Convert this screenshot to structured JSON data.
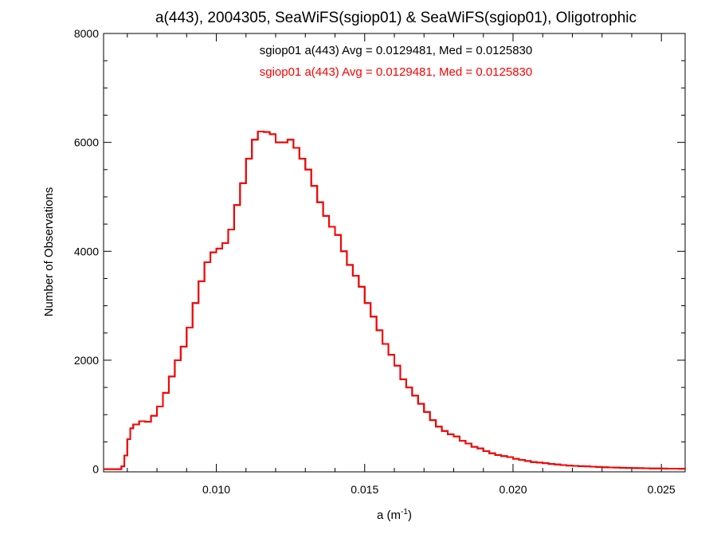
{
  "chart_data": {
    "type": "line",
    "step": true,
    "title": "a(443), 2004305, SeaWiFS(sgiop01) & SeaWiFS(sgiop01), Oligotrophic",
    "xlabel": {
      "base": "a (m",
      "sup": "-1",
      "close": ")"
    },
    "ylabel": "Number of Observations",
    "xlim": [
      0.0062,
      0.0258
    ],
    "ylim": [
      -50,
      8000
    ],
    "x_ticks": [
      {
        "value": 0.01,
        "label": "0.010"
      },
      {
        "value": 0.015,
        "label": "0.015"
      },
      {
        "value": 0.02,
        "label": "0.020"
      },
      {
        "value": 0.025,
        "label": "0.025"
      }
    ],
    "y_ticks": [
      {
        "value": 0,
        "label": "0"
      },
      {
        "value": 2000,
        "label": "2000"
      },
      {
        "value": 4000,
        "label": "4000"
      },
      {
        "value": 6000,
        "label": "6000"
      },
      {
        "value": 8000,
        "label": "8000"
      }
    ],
    "grid": false,
    "legend_placement": "top-center",
    "series": [
      {
        "legend": "sgiop01 a(443) Avg = 0.0129481, Med = 0.0125830",
        "color": "#000000",
        "x": [
          0.0062,
          0.0066,
          0.0068,
          0.0069,
          0.007,
          0.0071,
          0.0072,
          0.0074,
          0.0076,
          0.0078,
          0.008,
          0.0082,
          0.0084,
          0.0086,
          0.0088,
          0.009,
          0.0092,
          0.0094,
          0.0096,
          0.0098,
          0.01,
          0.0102,
          0.0104,
          0.0106,
          0.0108,
          0.011,
          0.0112,
          0.0114,
          0.0116,
          0.0118,
          0.012,
          0.0122,
          0.0124,
          0.0126,
          0.0128,
          0.013,
          0.0132,
          0.0134,
          0.0136,
          0.0138,
          0.014,
          0.0142,
          0.0144,
          0.0146,
          0.0148,
          0.015,
          0.0152,
          0.0154,
          0.0156,
          0.0158,
          0.016,
          0.0162,
          0.0164,
          0.0166,
          0.0168,
          0.017,
          0.0172,
          0.0174,
          0.0176,
          0.0178,
          0.018,
          0.0182,
          0.0184,
          0.0186,
          0.0188,
          0.019,
          0.0192,
          0.0194,
          0.0196,
          0.0198,
          0.02,
          0.0202,
          0.0204,
          0.0206,
          0.0208,
          0.021,
          0.0212,
          0.0214,
          0.0216,
          0.0218,
          0.022,
          0.0222,
          0.0224,
          0.0226,
          0.0228,
          0.023,
          0.0232,
          0.0234,
          0.0236,
          0.0238,
          0.024,
          0.0242,
          0.0244,
          0.0246,
          0.0248,
          0.025,
          0.0252,
          0.0254,
          0.0256,
          0.0258
        ],
        "y": [
          0,
          0,
          50,
          250,
          550,
          750,
          820,
          880,
          870,
          980,
          1150,
          1400,
          1700,
          2000,
          2250,
          2600,
          3050,
          3450,
          3800,
          3980,
          4050,
          4150,
          4400,
          4850,
          5250,
          5700,
          6050,
          6200,
          6190,
          6150,
          6000,
          6000,
          6050,
          5900,
          5700,
          5500,
          5200,
          4900,
          4650,
          4450,
          4300,
          4000,
          3750,
          3550,
          3350,
          3050,
          2800,
          2550,
          2300,
          2100,
          1900,
          1650,
          1500,
          1350,
          1200,
          1050,
          900,
          780,
          700,
          640,
          600,
          520,
          470,
          410,
          380,
          330,
          290,
          260,
          240,
          220,
          190,
          170,
          150,
          130,
          120,
          110,
          95,
          85,
          75,
          65,
          60,
          55,
          50,
          45,
          40,
          35,
          30,
          28,
          25,
          22,
          20,
          18,
          15,
          13,
          12,
          10,
          9,
          8,
          7,
          6
        ]
      },
      {
        "legend": "sgiop01 a(443) Avg = 0.0129481, Med = 0.0125830",
        "color": "#ff0000",
        "x": [
          0.0062,
          0.0066,
          0.0068,
          0.0069,
          0.007,
          0.0071,
          0.0072,
          0.0074,
          0.0076,
          0.0078,
          0.008,
          0.0082,
          0.0084,
          0.0086,
          0.0088,
          0.009,
          0.0092,
          0.0094,
          0.0096,
          0.0098,
          0.01,
          0.0102,
          0.0104,
          0.0106,
          0.0108,
          0.011,
          0.0112,
          0.0114,
          0.0116,
          0.0118,
          0.012,
          0.0122,
          0.0124,
          0.0126,
          0.0128,
          0.013,
          0.0132,
          0.0134,
          0.0136,
          0.0138,
          0.014,
          0.0142,
          0.0144,
          0.0146,
          0.0148,
          0.015,
          0.0152,
          0.0154,
          0.0156,
          0.0158,
          0.016,
          0.0162,
          0.0164,
          0.0166,
          0.0168,
          0.017,
          0.0172,
          0.0174,
          0.0176,
          0.0178,
          0.018,
          0.0182,
          0.0184,
          0.0186,
          0.0188,
          0.019,
          0.0192,
          0.0194,
          0.0196,
          0.0198,
          0.02,
          0.0202,
          0.0204,
          0.0206,
          0.0208,
          0.021,
          0.0212,
          0.0214,
          0.0216,
          0.0218,
          0.022,
          0.0222,
          0.0224,
          0.0226,
          0.0228,
          0.023,
          0.0232,
          0.0234,
          0.0236,
          0.0238,
          0.024,
          0.0242,
          0.0244,
          0.0246,
          0.0248,
          0.025,
          0.0252,
          0.0254,
          0.0256,
          0.0258
        ],
        "y": [
          0,
          0,
          50,
          250,
          550,
          750,
          820,
          880,
          870,
          980,
          1150,
          1400,
          1700,
          2000,
          2250,
          2600,
          3050,
          3450,
          3800,
          3980,
          4050,
          4150,
          4400,
          4850,
          5250,
          5700,
          6050,
          6200,
          6190,
          6150,
          6000,
          6000,
          6050,
          5900,
          5700,
          5500,
          5200,
          4900,
          4650,
          4450,
          4300,
          4000,
          3750,
          3550,
          3350,
          3050,
          2800,
          2550,
          2300,
          2100,
          1900,
          1650,
          1500,
          1350,
          1200,
          1050,
          900,
          780,
          700,
          640,
          600,
          520,
          470,
          410,
          380,
          330,
          290,
          260,
          240,
          220,
          190,
          170,
          150,
          130,
          120,
          110,
          95,
          85,
          75,
          65,
          60,
          55,
          50,
          45,
          40,
          35,
          30,
          28,
          25,
          22,
          20,
          18,
          15,
          13,
          12,
          10,
          9,
          8,
          7,
          6
        ]
      }
    ]
  }
}
